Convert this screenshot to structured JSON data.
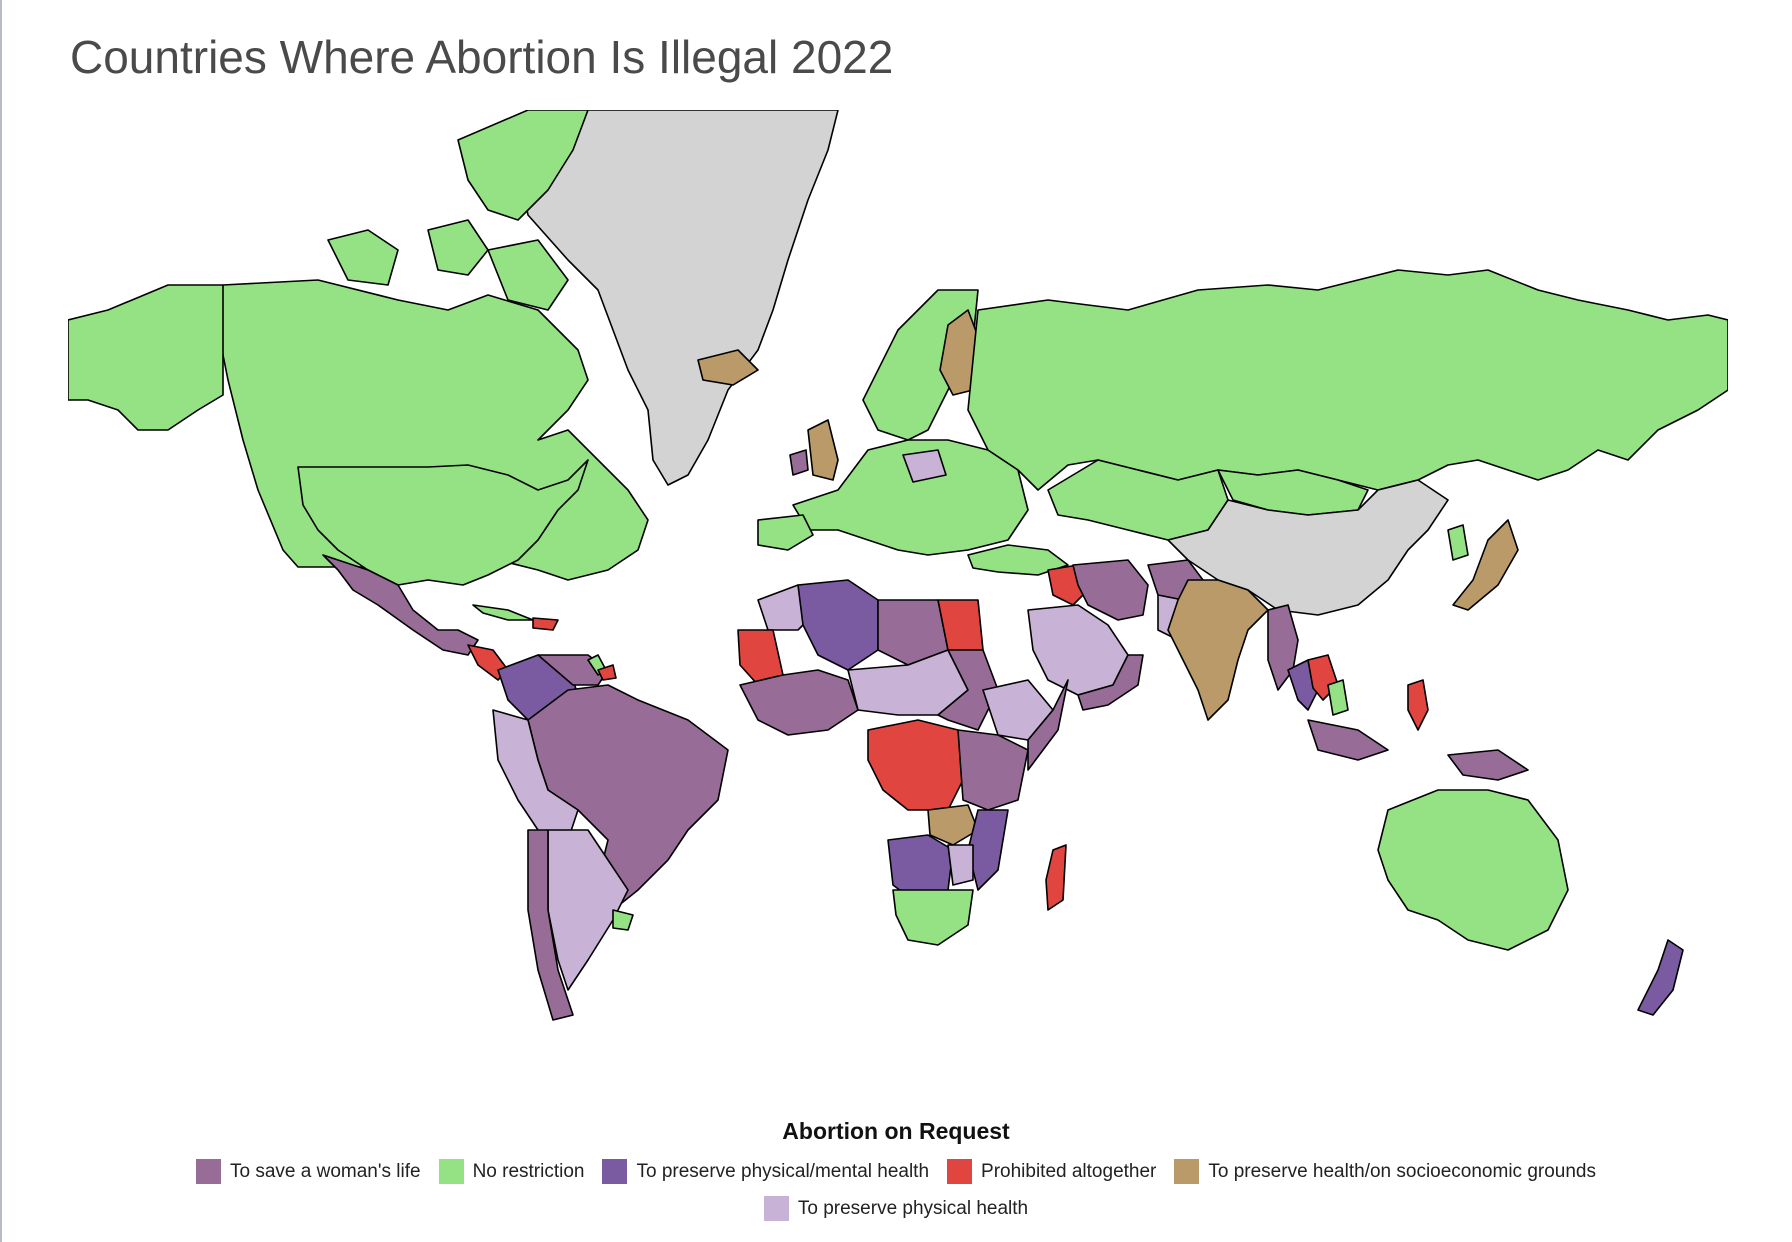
{
  "title": "Countries Where Abortion Is Illegal 2022",
  "colors": {
    "to_save_life": "#976d98",
    "no_restriction": "#95e285",
    "physical_mental": "#7a5aa1",
    "prohibited": "#e0463f",
    "socioeconomic": "#b99a68",
    "physical_health": "#c8b3d6",
    "no_data": "#d3d3d3",
    "stroke": "#000000"
  },
  "legend": {
    "title": "Abortion on Request",
    "items": [
      {
        "label": "To save a woman's life",
        "color": "#976d98"
      },
      {
        "label": "No restriction",
        "color": "#95e285"
      },
      {
        "label": "To preserve physical/mental health",
        "color": "#7a5aa1"
      },
      {
        "label": "Prohibited altogether",
        "color": "#e0463f"
      },
      {
        "label": "To preserve health/on socioeconomic grounds",
        "color": "#b99a68"
      },
      {
        "label": "To preserve physical health",
        "color": "#c8b3d6"
      }
    ]
  }
}
